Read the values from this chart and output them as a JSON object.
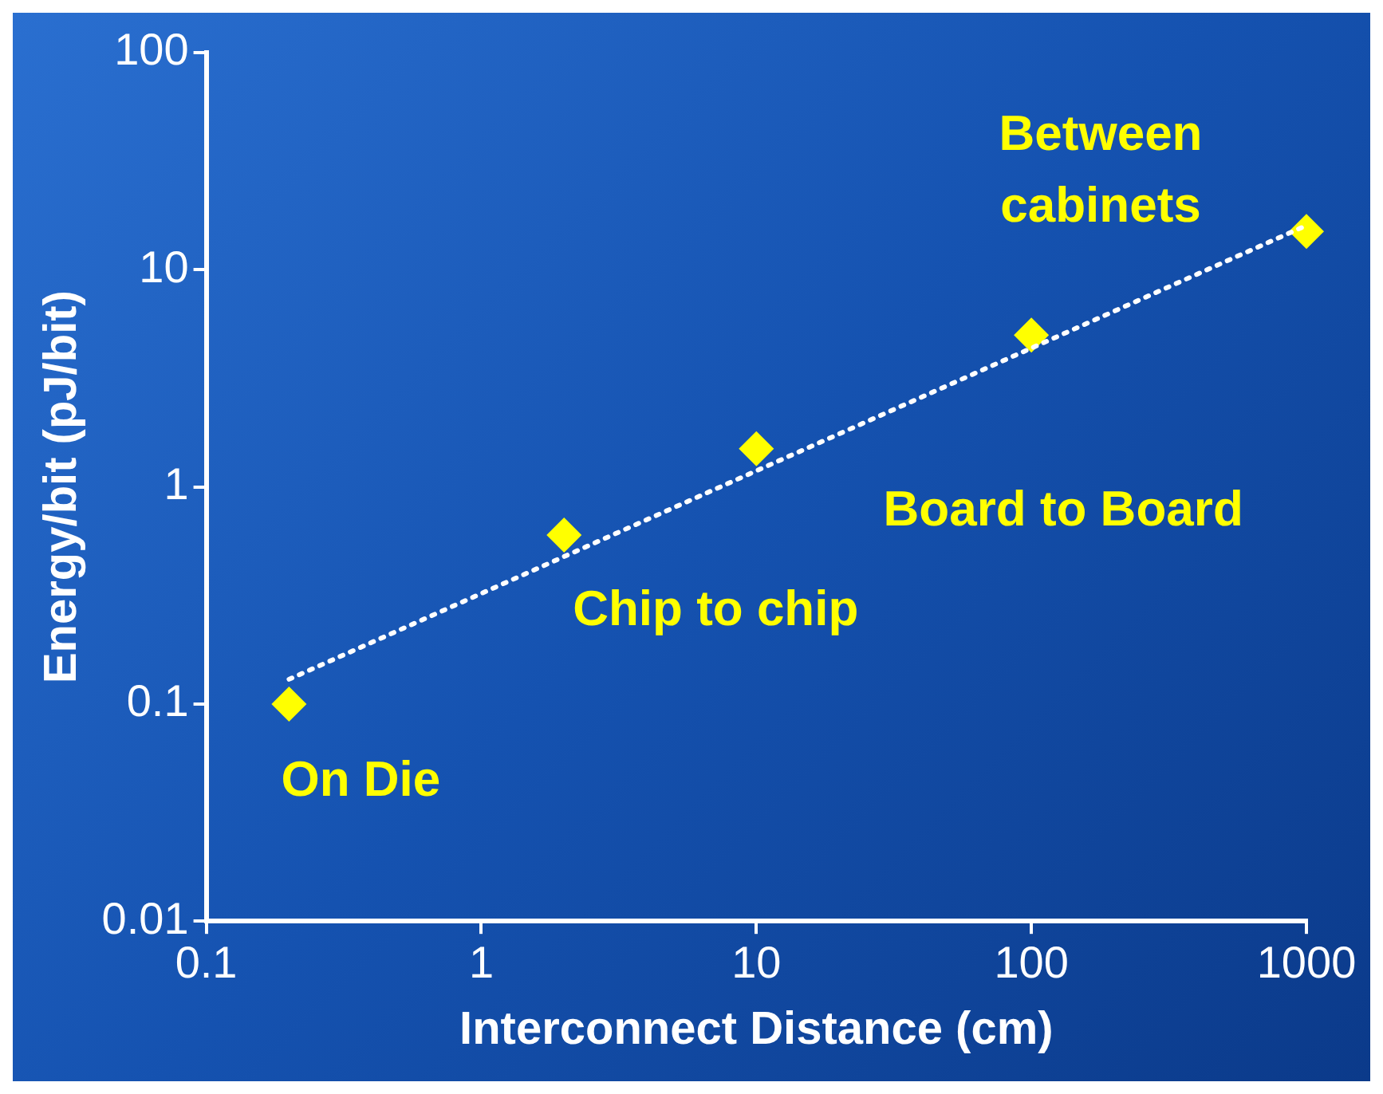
{
  "chart_data": {
    "type": "scatter",
    "xlabel": "Interconnect Distance (cm)",
    "ylabel": "Energy/bit (pJ/bit)",
    "log": "xy",
    "xlim": [
      0.1,
      1000
    ],
    "ylim": [
      0.01,
      100
    ],
    "xticks": [
      0.1,
      1,
      10,
      100,
      1000
    ],
    "yticks": [
      0.01,
      0.1,
      1,
      10,
      100
    ],
    "grid": false,
    "legend": false,
    "marker": "diamond",
    "x": [
      0.2,
      2,
      10,
      100,
      1000
    ],
    "series": [
      {
        "color": "#ffff00",
        "values": [
          0.1,
          0.6,
          1.5,
          5,
          15
        ]
      },
      {
        "type": "line",
        "x": [
          0.2,
          1000
        ],
        "values": [
          0.13,
          16
        ],
        "color": "#ffffff",
        "line_style": "dotted",
        "marker": "none"
      }
    ],
    "annotations": [
      {
        "text": "On Die",
        "x": 0.2,
        "y": 0.1
      },
      {
        "text": "Chip to chip",
        "x": 2,
        "y": 0.6
      },
      {
        "text": "Board to Board",
        "x": 100,
        "y": 5
      },
      {
        "text": "Between cabinets",
        "x": 1000,
        "y": 15
      }
    ]
  }
}
